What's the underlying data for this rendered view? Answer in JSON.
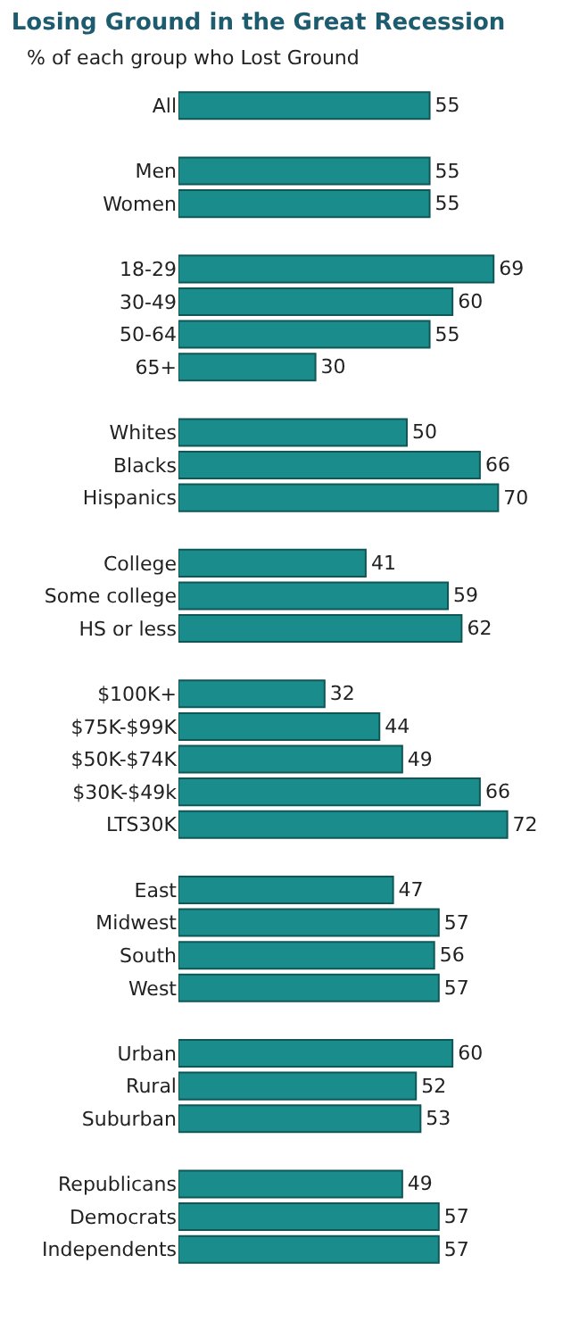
{
  "chart_data": {
    "type": "bar",
    "orientation": "horizontal",
    "title": "Losing Ground in the Great Recession",
    "subtitle": "% of each group who Lost Ground",
    "categories": [
      "All",
      null,
      "Men",
      "Women",
      null,
      "18-29",
      "30-49",
      "50-64",
      "65+",
      null,
      "Whites",
      "Blacks",
      "Hispanics",
      null,
      "College",
      "Some college",
      "HS or less",
      null,
      "$100K+",
      "$75K-$99K",
      "$50K-$74K",
      "$30K-$49k",
      "LTS30K",
      null,
      "East",
      "Midwest",
      "South",
      "West",
      null,
      "Urban",
      "Rural",
      "Suburban",
      null,
      "Republicans",
      "Democrats",
      "Independents"
    ],
    "values": [
      55,
      null,
      55,
      55,
      null,
      69,
      60,
      55,
      30,
      null,
      50,
      66,
      70,
      null,
      41,
      59,
      62,
      null,
      32,
      44,
      49,
      66,
      72,
      null,
      47,
      57,
      56,
      57,
      null,
      60,
      52,
      53,
      null,
      49,
      57,
      57
    ],
    "color": "#1b8c8c",
    "data_labels": true,
    "tick_labels": "y"
  }
}
